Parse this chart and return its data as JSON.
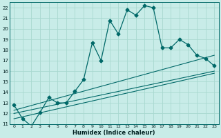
{
  "xlabel": "Humidex (Indice chaleur)",
  "background_color": "#c8ece8",
  "grid_color": "#a8d8d0",
  "line_color": "#006868",
  "xlim": [
    -0.5,
    23.5
  ],
  "ylim": [
    11,
    22.5
  ],
  "xticks": [
    0,
    1,
    2,
    3,
    4,
    5,
    6,
    7,
    8,
    9,
    10,
    11,
    12,
    13,
    14,
    15,
    16,
    17,
    18,
    19,
    20,
    21,
    22,
    23
  ],
  "yticks": [
    11,
    12,
    13,
    14,
    15,
    16,
    17,
    18,
    19,
    20,
    21,
    22
  ],
  "main_series": {
    "x": [
      0,
      1,
      2,
      3,
      4,
      5,
      6,
      7,
      8,
      9,
      10,
      11,
      12,
      13,
      14,
      15,
      16,
      17,
      18,
      19,
      20,
      21,
      22,
      23
    ],
    "y": [
      12.8,
      11.5,
      10.8,
      12.1,
      13.5,
      13.0,
      13.0,
      14.1,
      15.2,
      18.7,
      17.0,
      20.8,
      19.5,
      21.8,
      21.3,
      22.2,
      22.0,
      18.2,
      18.2,
      19.0,
      18.5,
      17.5,
      17.2,
      16.5
    ]
  },
  "trend_lines": [
    {
      "x": [
        0,
        23
      ],
      "y": [
        12.3,
        17.5
      ]
    },
    {
      "x": [
        0,
        23
      ],
      "y": [
        12.0,
        16.0
      ]
    },
    {
      "x": [
        0,
        23
      ],
      "y": [
        11.5,
        15.8
      ]
    }
  ]
}
